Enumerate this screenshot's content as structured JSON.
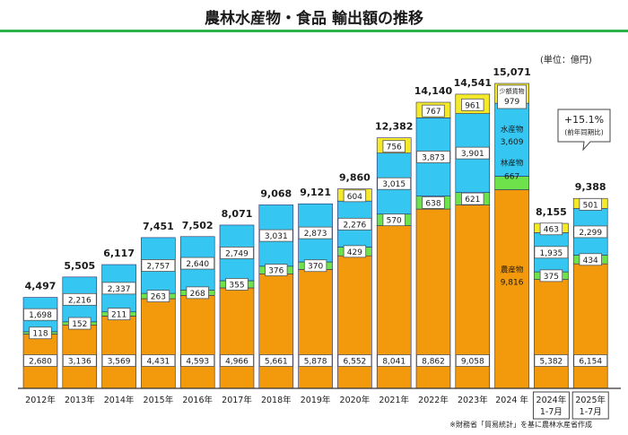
{
  "title": "農林水産物・食品 輸出額の推移",
  "unit": "(単位：億円)",
  "source": "※財務省「貿易統計」を基に農林水産省作成",
  "colors": {
    "agri": "#f39a0c",
    "forest": "#6ee24a",
    "fish": "#35c6f2",
    "small": "#f4ea2a",
    "axis": "#333333",
    "accent": "#2bb24c"
  },
  "chart_data": {
    "type": "bar",
    "stacked": true,
    "categories": [
      "2012年",
      "2013年",
      "2014年",
      "2015年",
      "2016年",
      "2017年",
      "2018年",
      "2019年",
      "2020年",
      "2021年",
      "2022年",
      "2023年",
      "2024 年",
      "2024年\n1-7月",
      "2025年\n1-7月"
    ],
    "series": [
      {
        "key": "agri",
        "name": "農産物",
        "values": [
          2680,
          3136,
          3569,
          4431,
          4593,
          4966,
          5661,
          5878,
          6552,
          8041,
          8862,
          9058,
          9816,
          5382,
          6154
        ]
      },
      {
        "key": "forest",
        "name": "林産物",
        "values": [
          118,
          152,
          211,
          263,
          268,
          355,
          376,
          370,
          429,
          570,
          638,
          621,
          667,
          375,
          434
        ]
      },
      {
        "key": "fish",
        "name": "水産物",
        "values": [
          1698,
          2216,
          2337,
          2757,
          2640,
          2749,
          3031,
          2873,
          2276,
          3015,
          3873,
          3901,
          3609,
          1935,
          2299
        ]
      },
      {
        "key": "small",
        "name": "少額貨物",
        "values": [
          0,
          0,
          0,
          0,
          0,
          0,
          0,
          0,
          604,
          756,
          767,
          961,
          979,
          463,
          501
        ]
      }
    ],
    "totals": [
      "4,497",
      "5,505",
      "6,117",
      "7,451",
      "7,502",
      "8,071",
      "9,068",
      "9,121",
      "9,860",
      "12,382",
      "14,140",
      "14,541",
      "15,071",
      "8,155",
      "9,388"
    ],
    "value_labels": {
      "agri": [
        "2,680",
        "3,136",
        "3,569",
        "4,431",
        "4,593",
        "4,966",
        "5,661",
        "5,878",
        "6,552",
        "8,041",
        "8,862",
        "9,058",
        "9,816",
        "5,382",
        "6,154"
      ],
      "forest": [
        "118",
        "152",
        "211",
        "263",
        "268",
        "355",
        "376",
        "370",
        "429",
        "570",
        "638",
        "621",
        "667",
        "375",
        "434"
      ],
      "fish": [
        "1,698",
        "2,216",
        "2,337",
        "2,757",
        "2,640",
        "2,749",
        "3,031",
        "2,873",
        "2,276",
        "3,015",
        "3,873",
        "3,901",
        "3,609",
        "1,935",
        "2,299"
      ],
      "small": [
        "",
        "",
        "",
        "",
        "",
        "",
        "",
        "",
        "604",
        "756",
        "767",
        "961",
        "979",
        "463",
        "501"
      ]
    },
    "ylim": [
      0,
      16000
    ],
    "callout": {
      "text": "+15.1%",
      "subtext": "(前年同期比)"
    }
  }
}
